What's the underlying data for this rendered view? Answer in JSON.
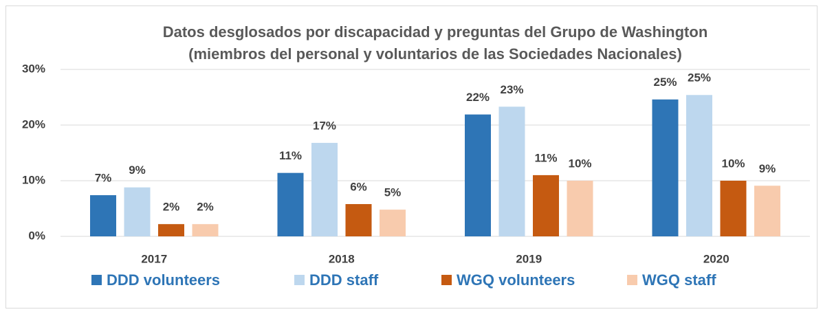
{
  "chart_data": {
    "type": "bar",
    "title": [
      "Datos desglosados por discapacidad y preguntas del Grupo de Washington",
      "(miembros del personal y voluntarios de las Sociedades Nacionales)"
    ],
    "categories": [
      "2017",
      "2018",
      "2019",
      "2020"
    ],
    "series": [
      {
        "name": "DDD volunteers",
        "color": "#2e75b6",
        "values": [
          7.4,
          11.4,
          21.9,
          24.6
        ],
        "value_labels": [
          "7%",
          "11%",
          "22%",
          "25%"
        ]
      },
      {
        "name": "DDD staff",
        "color": "#bdd7ee",
        "values": [
          8.8,
          16.8,
          23.3,
          25.4
        ],
        "value_labels": [
          "9%",
          "17%",
          "23%",
          "25%"
        ]
      },
      {
        "name": "WGQ volunteers",
        "color": "#c55a11",
        "values": [
          2.2,
          5.8,
          11.0,
          10.0
        ],
        "value_labels": [
          "2%",
          "6%",
          "11%",
          "10%"
        ]
      },
      {
        "name": "WGQ staff",
        "color": "#f8cbad",
        "values": [
          2.2,
          4.8,
          10.0,
          9.1
        ],
        "value_labels": [
          "2%",
          "5%",
          "10%",
          "9%"
        ]
      }
    ],
    "ylim": [
      0,
      30
    ],
    "yticks": [
      {
        "value": 0,
        "label": "0%"
      },
      {
        "value": 10,
        "label": "10%"
      },
      {
        "value": 20,
        "label": "20%"
      },
      {
        "value": 30,
        "label": "30%"
      }
    ],
    "grid": true,
    "legend": "bottom"
  }
}
